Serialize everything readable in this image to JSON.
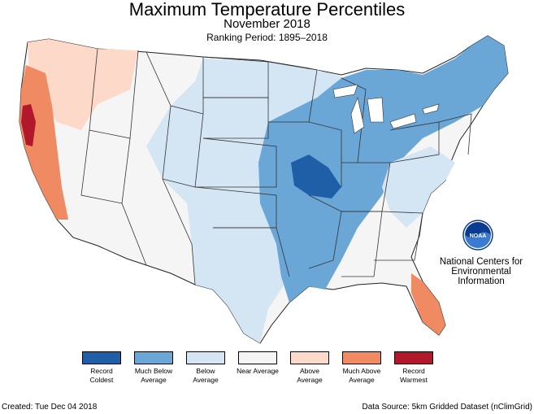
{
  "title": "Maximum Temperature Percentiles",
  "subtitle": "November 2018",
  "ranking_period": "Ranking Period: 1895–2018",
  "legend": [
    {
      "label": "Record Coldest",
      "color": "#1f5fa8"
    },
    {
      "label": "Much Below Average",
      "color": "#6aa6d6"
    },
    {
      "label": "Below Average",
      "color": "#d4e6f3"
    },
    {
      "label": "Near Average",
      "color": "#f5f5f5"
    },
    {
      "label": "Above Average",
      "color": "#fcd9c8"
    },
    {
      "label": "Much Above Average",
      "color": "#ef8a62"
    },
    {
      "label": "Record Warmest",
      "color": "#b2182b"
    }
  ],
  "agency": {
    "logo_text": "NOAA",
    "name": "National Centers for Environmental Information"
  },
  "footer": {
    "created": "Created: Tue Dec 04 2018",
    "source": "Data Source: 5km Gridded Dataset (nClimGrid)"
  },
  "map_regions": [
    {
      "name": "west-coast",
      "category": "Much Above Average"
    },
    {
      "name": "northwest-interior",
      "category": "Above Average"
    },
    {
      "name": "great-basin-southwest",
      "category": "Near Average"
    },
    {
      "name": "great-plains",
      "category": "Below Average"
    },
    {
      "name": "midwest-south",
      "category": "Much Below Average"
    },
    {
      "name": "midwest-core",
      "category": "Record Coldest"
    },
    {
      "name": "northeast",
      "category": "Much Below Average"
    },
    {
      "name": "florida",
      "category": "Much Above Average"
    },
    {
      "name": "northern-california-coast",
      "category": "Record Warmest"
    }
  ]
}
